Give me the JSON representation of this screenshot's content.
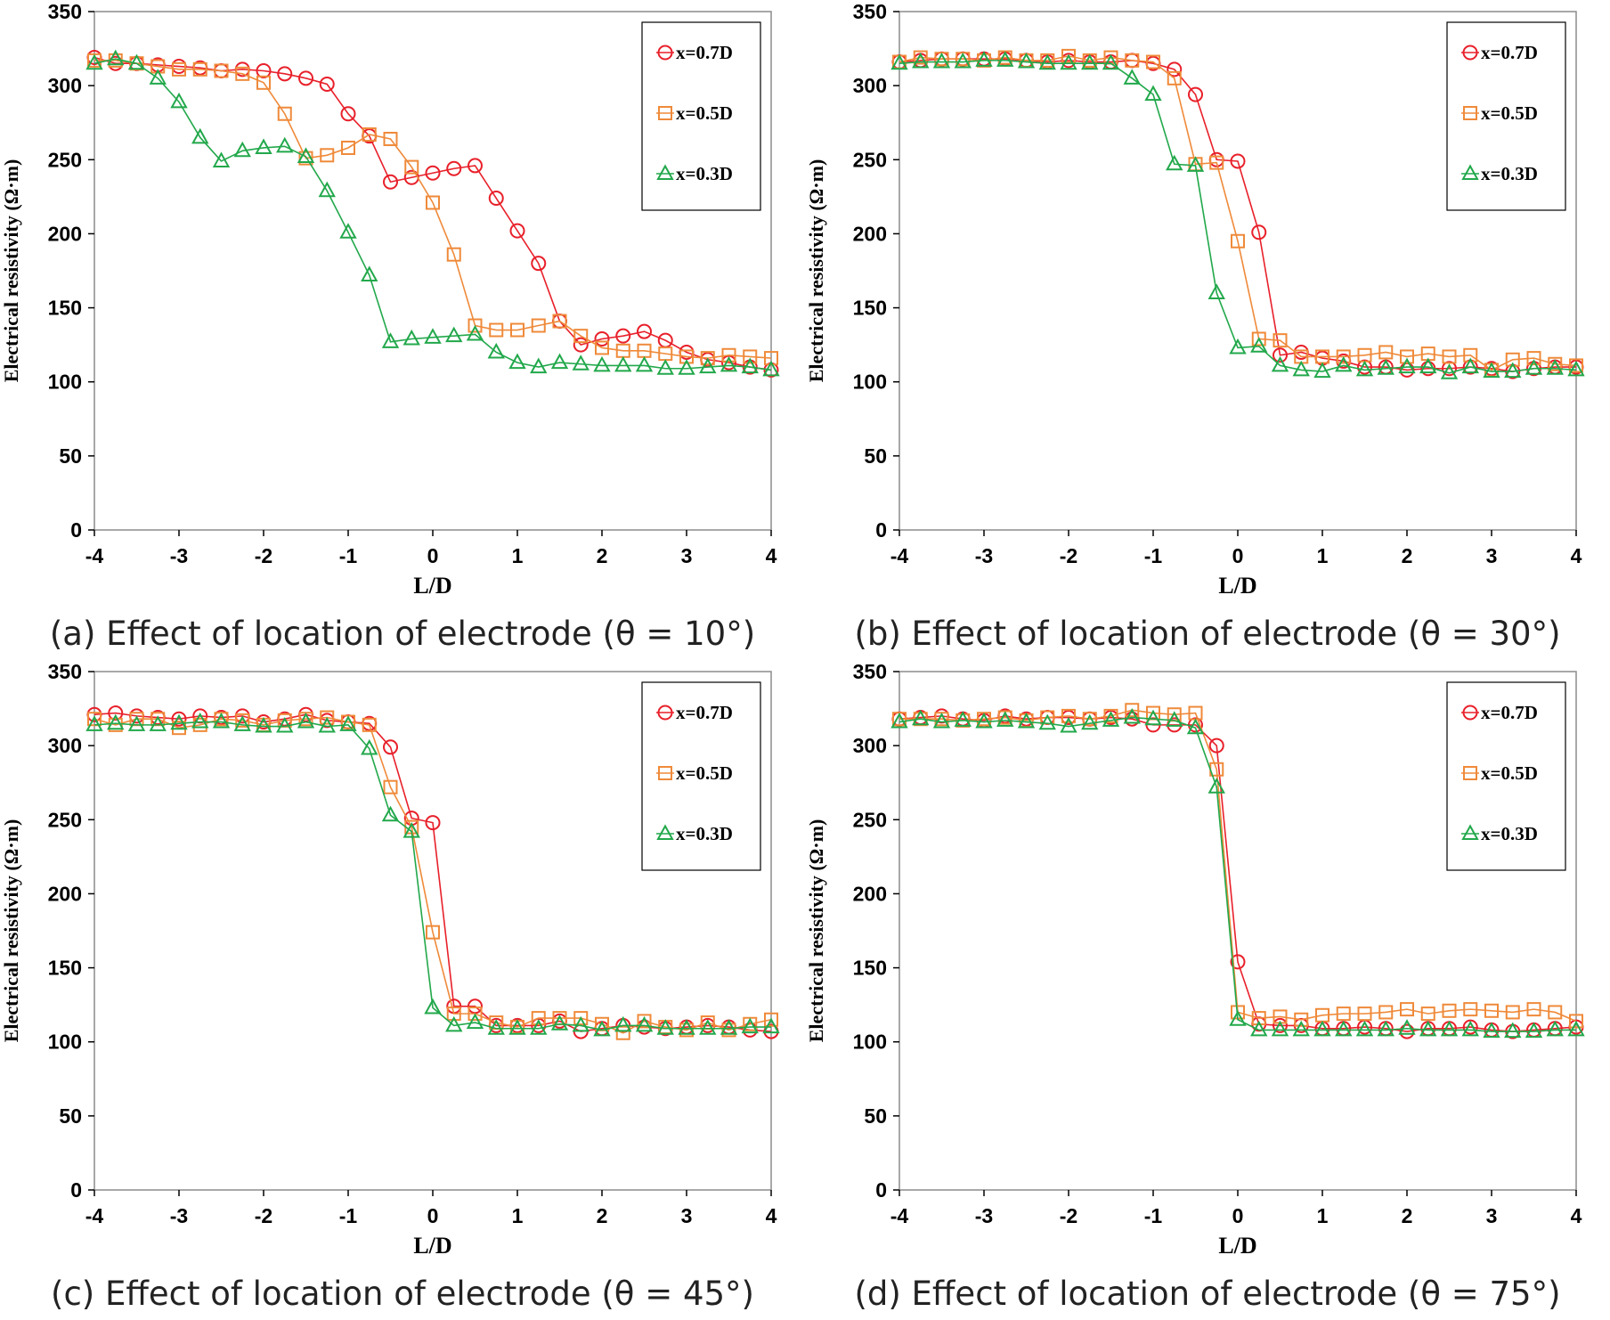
{
  "colors": {
    "x07": "#e8202a",
    "x05": "#ef8a3a",
    "x03": "#22a84b"
  },
  "chart_data": [
    {
      "type": "line",
      "caption": "(a) Effect of location of electrode (θ = 10°)",
      "xlabel": "L/D",
      "ylabel": "Electrical resistivity (Ω·m)",
      "xlim": [
        -4,
        4
      ],
      "ylim": [
        0,
        350
      ],
      "xticks": [
        "-4",
        "-3",
        "-2",
        "-1",
        "0",
        "1",
        "2",
        "3",
        "4"
      ],
      "yticks": [
        "0",
        "50",
        "100",
        "150",
        "200",
        "250",
        "300",
        "350"
      ],
      "legend": [
        "x=0.7D",
        "x=0.5D",
        "x=0.3D"
      ],
      "x": [
        -4,
        -3.75,
        -3.5,
        -3.25,
        -3,
        -2.75,
        -2.5,
        -2.25,
        -2,
        -1.75,
        -1.5,
        -1.25,
        -1,
        -0.75,
        -0.5,
        -0.25,
        0,
        0.25,
        0.5,
        0.75,
        1,
        1.25,
        1.5,
        1.75,
        2,
        2.25,
        2.5,
        2.75,
        3,
        3.25,
        3.5,
        3.75,
        4
      ],
      "series": [
        {
          "name": "x=0.7D",
          "marker": "circle",
          "values": [
            319,
            315,
            315,
            314,
            313,
            312,
            310,
            311,
            310,
            308,
            305,
            301,
            281,
            266,
            235,
            238,
            241,
            244,
            246,
            224,
            202,
            180,
            141,
            125,
            129,
            131,
            134,
            128,
            120,
            115,
            113,
            110,
            108
          ]
        },
        {
          "name": "x=0.5D",
          "marker": "square",
          "values": [
            317,
            317,
            315,
            313,
            311,
            311,
            310,
            308,
            302,
            281,
            251,
            253,
            258,
            267,
            264,
            245,
            221,
            186,
            138,
            135,
            135,
            138,
            141,
            131,
            123,
            121,
            121,
            119,
            117,
            116,
            118,
            117,
            116
          ]
        },
        {
          "name": "x=0.3D",
          "marker": "triangle",
          "values": [
            315,
            318,
            315,
            305,
            289,
            265,
            249,
            256,
            258,
            259,
            252,
            229,
            201,
            172,
            127,
            129,
            130,
            131,
            132,
            120,
            113,
            110,
            113,
            112,
            111,
            111,
            111,
            109,
            109,
            110,
            111,
            110,
            108
          ]
        }
      ]
    },
    {
      "type": "line",
      "caption": "(b) Effect of location of electrode (θ = 30°)",
      "xlabel": "L/D",
      "ylabel": "Electrical resistivity (Ω·m)",
      "xlim": [
        -4,
        4
      ],
      "ylim": [
        0,
        350
      ],
      "xticks": [
        "-4",
        "-3",
        "-2",
        "-1",
        "0",
        "1",
        "2",
        "3",
        "4"
      ],
      "yticks": [
        "0",
        "50",
        "100",
        "150",
        "200",
        "250",
        "300",
        "350"
      ],
      "legend": [
        "x=0.7D",
        "x=0.5D",
        "x=0.3D"
      ],
      "x": [
        -4,
        -3.75,
        -3.5,
        -3.25,
        -3,
        -2.75,
        -2.5,
        -2.25,
        -2,
        -1.75,
        -1.5,
        -1.25,
        -1,
        -0.75,
        -0.5,
        -0.25,
        0,
        0.25,
        0.5,
        0.75,
        1,
        1.25,
        1.5,
        1.75,
        2,
        2.25,
        2.5,
        2.75,
        3,
        3.25,
        3.5,
        3.75,
        4
      ],
      "series": [
        {
          "name": "x=0.7D",
          "marker": "circle",
          "values": [
            316,
            317,
            318,
            318,
            318,
            318,
            317,
            316,
            317,
            316,
            316,
            317,
            315,
            311,
            294,
            250,
            249,
            201,
            118,
            120,
            116,
            114,
            110,
            110,
            108,
            109,
            109,
            110,
            109,
            107,
            109,
            110,
            110
          ]
        },
        {
          "name": "x=0.5D",
          "marker": "square",
          "values": [
            316,
            319,
            318,
            318,
            317,
            319,
            317,
            317,
            320,
            317,
            319,
            317,
            316,
            305,
            247,
            248,
            195,
            129,
            128,
            117,
            117,
            117,
            118,
            120,
            117,
            119,
            117,
            118,
            108,
            115,
            116,
            112,
            111
          ]
        },
        {
          "name": "x=0.3D",
          "marker": "triangle",
          "values": [
            315,
            316,
            316,
            316,
            317,
            317,
            316,
            315,
            315,
            315,
            315,
            305,
            294,
            247,
            246,
            160,
            123,
            124,
            111,
            108,
            107,
            111,
            108,
            109,
            110,
            110,
            106,
            110,
            107,
            107,
            109,
            109,
            108
          ]
        }
      ]
    },
    {
      "type": "line",
      "caption": "(c) Effect of location of electrode (θ = 45°)",
      "xlabel": "L/D",
      "ylabel": "Electrical resistivity (Ω·m)",
      "xlim": [
        -4,
        4
      ],
      "ylim": [
        0,
        350
      ],
      "xticks": [
        "-4",
        "-3",
        "-2",
        "-1",
        "0",
        "1",
        "2",
        "3",
        "4"
      ],
      "yticks": [
        "0",
        "50",
        "100",
        "150",
        "200",
        "250",
        "300",
        "350"
      ],
      "legend": [
        "x=0.7D",
        "x=0.5D",
        "x=0.3D"
      ],
      "x": [
        -4,
        -3.75,
        -3.5,
        -3.25,
        -3,
        -2.75,
        -2.5,
        -2.25,
        -2,
        -1.75,
        -1.5,
        -1.25,
        -1,
        -0.75,
        -0.5,
        -0.25,
        0,
        0.25,
        0.5,
        0.75,
        1,
        1.25,
        1.5,
        1.75,
        2,
        2.25,
        2.5,
        2.75,
        3,
        3.25,
        3.5,
        3.75,
        4
      ],
      "series": [
        {
          "name": "x=0.7D",
          "marker": "circle",
          "values": [
            321,
            322,
            320,
            319,
            318,
            320,
            319,
            320,
            316,
            318,
            321,
            317,
            316,
            315,
            299,
            251,
            248,
            124,
            124,
            111,
            111,
            111,
            114,
            107,
            109,
            111,
            110,
            109,
            110,
            111,
            110,
            108,
            107
          ]
        },
        {
          "name": "x=0.5D",
          "marker": "square",
          "values": [
            318,
            314,
            318,
            318,
            312,
            314,
            318,
            317,
            314,
            317,
            318,
            319,
            316,
            314,
            272,
            245,
            174,
            119,
            119,
            113,
            110,
            116,
            116,
            116,
            112,
            106,
            114,
            110,
            108,
            113,
            108,
            112,
            115
          ]
        },
        {
          "name": "x=0.3D",
          "marker": "triangle",
          "values": [
            314,
            315,
            314,
            314,
            315,
            316,
            316,
            314,
            313,
            313,
            316,
            313,
            314,
            298,
            253,
            242,
            123,
            111,
            113,
            109,
            109,
            109,
            112,
            111,
            108,
            111,
            111,
            109,
            109,
            109,
            109,
            110,
            110
          ]
        }
      ]
    },
    {
      "type": "line",
      "caption": "(d) Effect of location of electrode (θ = 75°)",
      "xlabel": "L/D",
      "ylabel": "Electrical resistivity (Ω·m)",
      "xlim": [
        -4,
        4
      ],
      "ylim": [
        0,
        350
      ],
      "xticks": [
        "-4",
        "-3",
        "-2",
        "-1",
        "0",
        "1",
        "2",
        "3",
        "4"
      ],
      "yticks": [
        "0",
        "50",
        "100",
        "150",
        "200",
        "250",
        "300",
        "350"
      ],
      "legend": [
        "x=0.7D",
        "x=0.5D",
        "x=0.3D"
      ],
      "x": [
        -4,
        -3.75,
        -3.5,
        -3.25,
        -3,
        -2.75,
        -2.5,
        -2.25,
        -2,
        -1.75,
        -1.5,
        -1.25,
        -1,
        -0.75,
        -0.5,
        -0.25,
        0,
        0.25,
        0.5,
        0.75,
        1,
        1.25,
        1.5,
        1.75,
        2,
        2.25,
        2.5,
        2.75,
        3,
        3.25,
        3.5,
        3.75,
        4
      ],
      "series": [
        {
          "name": "x=0.7D",
          "marker": "circle",
          "values": [
            318,
            319,
            320,
            318,
            317,
            320,
            318,
            319,
            319,
            318,
            319,
            318,
            314,
            314,
            314,
            300,
            154,
            112,
            111,
            111,
            109,
            109,
            110,
            109,
            107,
            109,
            109,
            110,
            108,
            107,
            108,
            109,
            110
          ]
        },
        {
          "name": "x=0.5D",
          "marker": "square",
          "values": [
            318,
            318,
            318,
            317,
            318,
            319,
            317,
            319,
            320,
            318,
            320,
            324,
            322,
            321,
            322,
            284,
            120,
            116,
            117,
            115,
            118,
            119,
            119,
            120,
            122,
            119,
            121,
            122,
            121,
            120,
            122,
            120,
            114
          ]
        },
        {
          "name": "x=0.3D",
          "marker": "triangle",
          "values": [
            316,
            318,
            316,
            317,
            316,
            317,
            316,
            315,
            313,
            315,
            317,
            319,
            318,
            317,
            312,
            272,
            115,
            108,
            108,
            108,
            108,
            108,
            108,
            108,
            109,
            108,
            108,
            108,
            107,
            107,
            107,
            108,
            108
          ]
        }
      ]
    }
  ]
}
